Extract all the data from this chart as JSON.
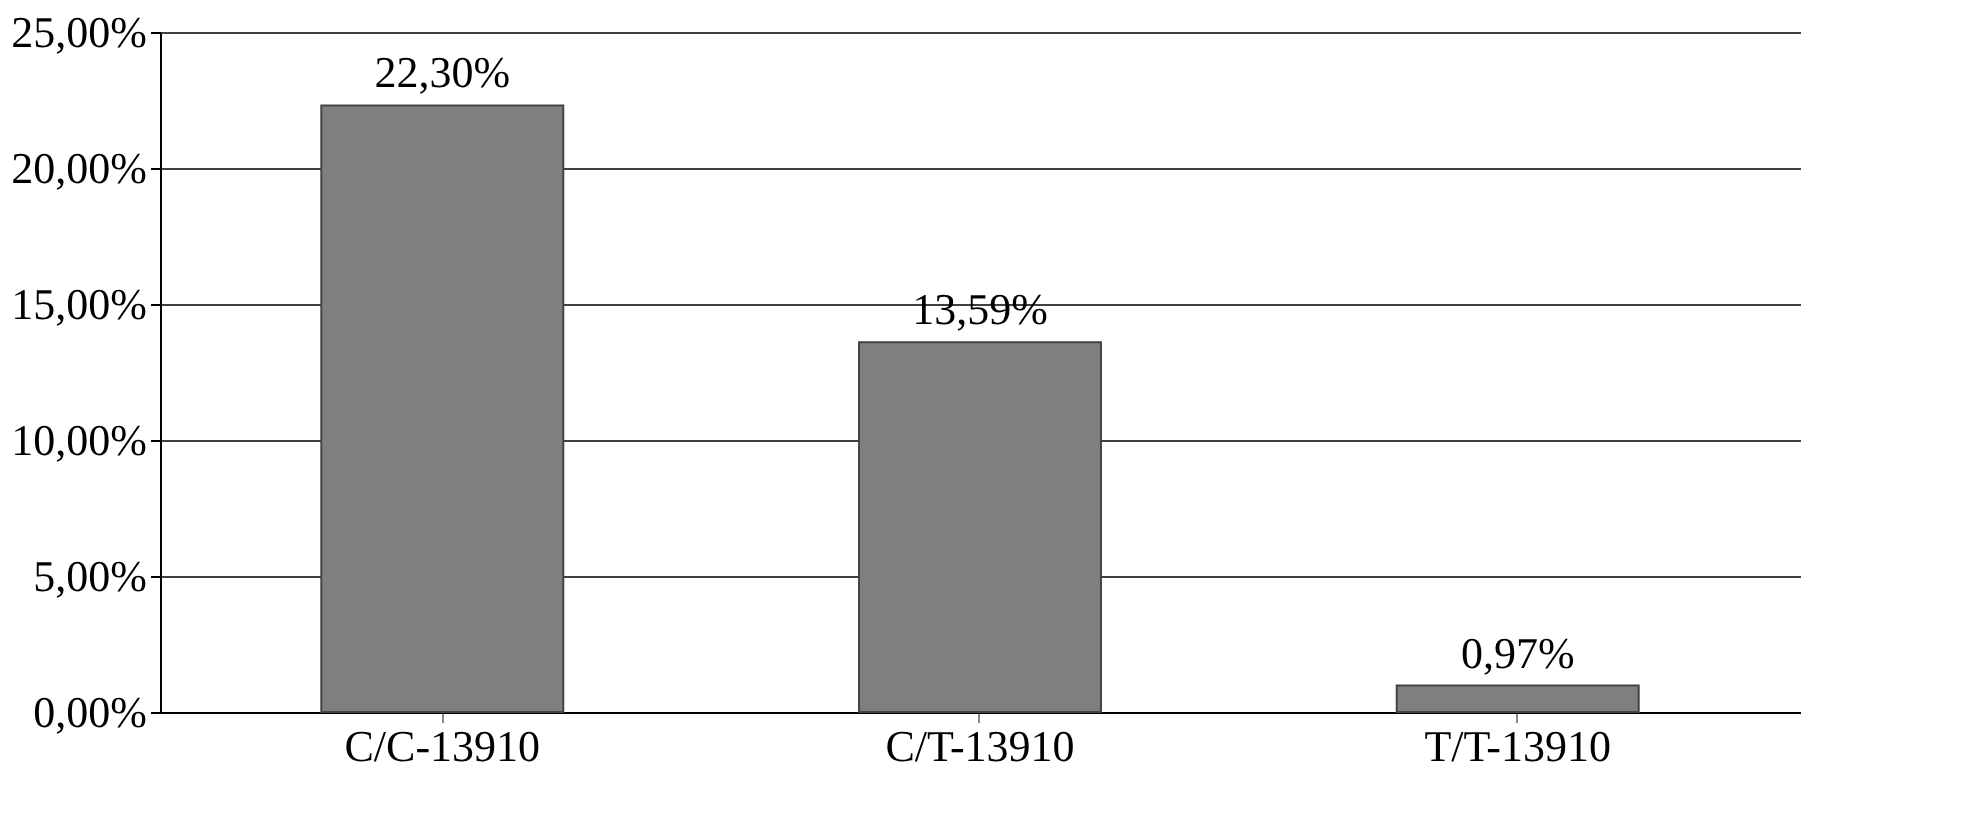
{
  "chart_data": {
    "type": "bar",
    "categories": [
      "C/C-13910",
      "C/T-13910",
      "T/T-13910"
    ],
    "values": [
      22.3,
      13.59,
      0.97
    ],
    "value_labels": [
      "22,30%",
      "13,59%",
      "0,97%"
    ],
    "color": "#7f7f7f",
    "ylim": [
      0,
      25
    ],
    "yticks": [
      {
        "value": 0,
        "label": "0,00%"
      },
      {
        "value": 5,
        "label": "5,00%"
      },
      {
        "value": 10,
        "label": "10,00%"
      },
      {
        "value": 15,
        "label": "15,00%"
      },
      {
        "value": 20,
        "label": "20,00%"
      },
      {
        "value": 25,
        "label": "25,00%"
      }
    ],
    "grid": "y"
  }
}
